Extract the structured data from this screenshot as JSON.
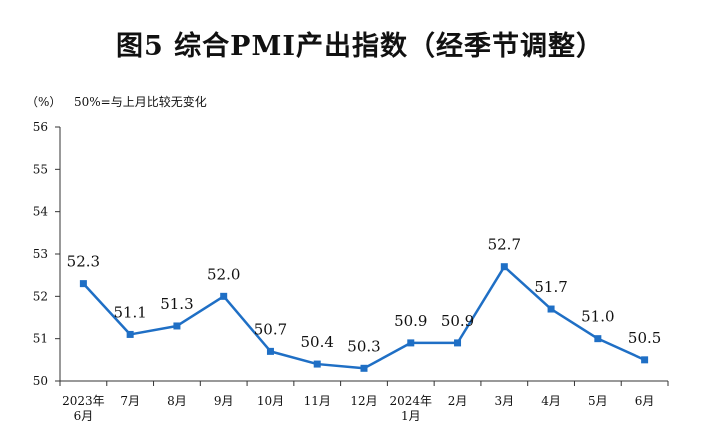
{
  "title": "图5  综合PMI产出指数（经季节调整）",
  "unit_label": "（%）",
  "note": "50%=与上月比较无变化",
  "colors": {
    "series": "#1F6FC5",
    "axis": "#333333"
  },
  "chart_data": {
    "type": "line",
    "title": "图5  综合PMI产出指数（经季节调整）",
    "xlabel": "",
    "ylabel": "（%）",
    "categories": [
      [
        "2023年",
        "6月"
      ],
      [
        "7月"
      ],
      [
        "8月"
      ],
      [
        "9月"
      ],
      [
        "10月"
      ],
      [
        "11月"
      ],
      [
        "12月"
      ],
      [
        "2024年",
        "1月"
      ],
      [
        "2月"
      ],
      [
        "3月"
      ],
      [
        "4月"
      ],
      [
        "5月"
      ],
      [
        "6月"
      ]
    ],
    "values": [
      52.3,
      51.1,
      51.3,
      52.0,
      50.7,
      50.4,
      50.3,
      50.9,
      50.9,
      52.7,
      51.7,
      51.0,
      50.5
    ],
    "value_labels": [
      "52.3",
      "51.1",
      "51.3",
      "52.0",
      "50.7",
      "50.4",
      "50.3",
      "50.9",
      "50.9",
      "52.7",
      "51.7",
      "51.0",
      "50.5"
    ],
    "ylim": [
      50,
      56
    ],
    "yticks": [
      50,
      51,
      52,
      53,
      54,
      55,
      56
    ],
    "grid": false,
    "marker": "square"
  }
}
